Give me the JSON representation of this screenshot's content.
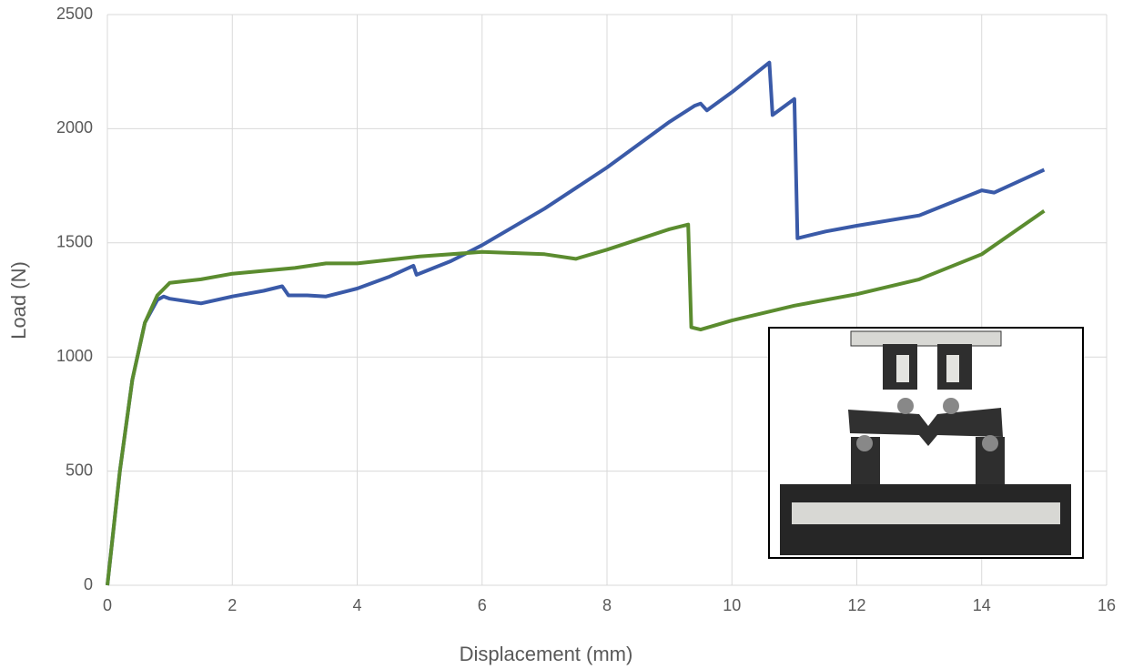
{
  "chart_data": {
    "type": "line",
    "x_label": "Displacement (mm)",
    "y_label": "Load (N)",
    "xlim": [
      0,
      16
    ],
    "xticks": [
      0,
      2,
      4,
      6,
      8,
      10,
      12,
      14,
      16
    ],
    "ylim": [
      0,
      2500
    ],
    "yticks": [
      0,
      500,
      1000,
      1500,
      2000,
      2500
    ],
    "grid": true,
    "series": [
      {
        "color": "#3a5aa8",
        "x": [
          0,
          0.2,
          0.4,
          0.6,
          0.8,
          0.9,
          1.0,
          1.5,
          2,
          2.5,
          2.8,
          2.9,
          3.2,
          3.5,
          4,
          4.5,
          4.9,
          4.95,
          5.5,
          6,
          7,
          8,
          9,
          9.4,
          9.5,
          9.6,
          10,
          10.6,
          10.65,
          11,
          11.05,
          11.5,
          12,
          13,
          14,
          14.2,
          15
        ],
        "values": [
          0,
          500,
          900,
          1150,
          1250,
          1265,
          1255,
          1235,
          1265,
          1290,
          1310,
          1270,
          1270,
          1265,
          1300,
          1350,
          1400,
          1360,
          1420,
          1490,
          1650,
          1830,
          2030,
          2100,
          2110,
          2080,
          2160,
          2290,
          2060,
          2130,
          1520,
          1550,
          1575,
          1620,
          1730,
          1720,
          1820
        ]
      },
      {
        "color": "#5b8c2f",
        "x": [
          0,
          0.2,
          0.4,
          0.6,
          0.8,
          1,
          1.5,
          2,
          3,
          3.5,
          4,
          5,
          6,
          7,
          7.5,
          8,
          9,
          9.3,
          9.35,
          9.5,
          10,
          11,
          12,
          13,
          14,
          15
        ],
        "values": [
          0,
          500,
          900,
          1150,
          1270,
          1325,
          1340,
          1365,
          1390,
          1410,
          1410,
          1440,
          1460,
          1450,
          1430,
          1470,
          1560,
          1580,
          1130,
          1120,
          1160,
          1225,
          1275,
          1340,
          1450,
          1640
        ]
      }
    ]
  }
}
